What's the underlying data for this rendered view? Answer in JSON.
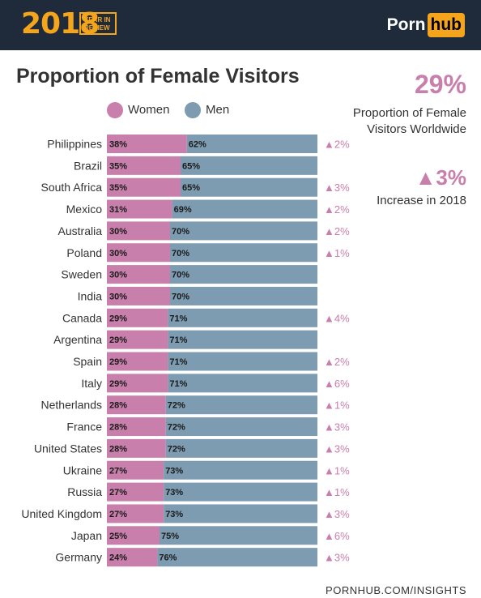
{
  "header": {
    "year": "2018",
    "year_in_review": "YEAR IN REVIEW",
    "brand_left": "Porn",
    "brand_right": "hub"
  },
  "side_panel": {
    "big_percent": "29%",
    "big_percent_caption": "Proportion of Female Visitors Worldwide",
    "increase": "▲3%",
    "increase_caption": "Increase in 2018"
  },
  "footer": "PORNHUB.COM/INSIGHTS",
  "colors": {
    "women": "#c97fac",
    "men": "#7d9bb1",
    "header_bg": "#1f2b3b",
    "accent": "#f5a51c"
  },
  "chart_data": {
    "type": "bar",
    "stacked": true,
    "orientation": "horizontal",
    "title": "Proportion of Female Visitors",
    "categories": [
      "Philippines",
      "Brazil",
      "South Africa",
      "Mexico",
      "Australia",
      "Poland",
      "Sweden",
      "India",
      "Canada",
      "Argentina",
      "Spain",
      "Italy",
      "Netherlands",
      "France",
      "United States",
      "Ukraine",
      "Russia",
      "United Kingdom",
      "Japan",
      "Germany"
    ],
    "series": [
      {
        "name": "Women",
        "values": [
          38,
          35,
          35,
          31,
          30,
          30,
          30,
          30,
          29,
          29,
          29,
          29,
          28,
          28,
          28,
          27,
          27,
          27,
          25,
          24
        ]
      },
      {
        "name": "Men",
        "values": [
          62,
          65,
          65,
          69,
          70,
          70,
          70,
          70,
          71,
          71,
          71,
          71,
          72,
          72,
          72,
          73,
          73,
          73,
          75,
          76
        ]
      }
    ],
    "change_labels": [
      "▲2%",
      "",
      "▲3%",
      "▲2%",
      "▲2%",
      "▲1%",
      "",
      "",
      "▲4%",
      "",
      "▲2%",
      "▲6%",
      "▲1%",
      "▲3%",
      "▲3%",
      "▲1%",
      "▲1%",
      "▲3%",
      "▲6%",
      "▲3%"
    ],
    "xlim": [
      0,
      100
    ],
    "legend_position": "top"
  }
}
